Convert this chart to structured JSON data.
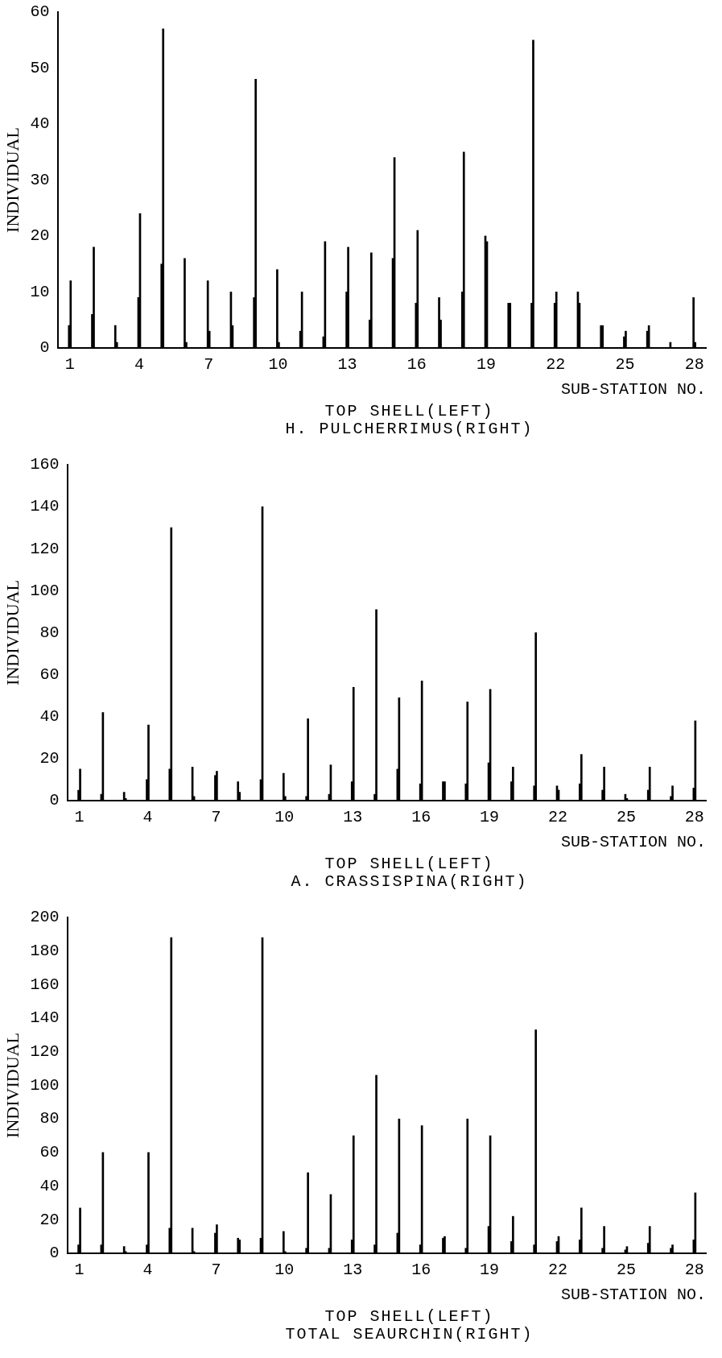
{
  "chart_data": [
    {
      "type": "bar",
      "title": "TOP SHELL(LEFT)",
      "subtitle": "H. PULCHERRIMUS(RIGHT)",
      "xlabel": "SUB-STATION NO.",
      "ylabel": "INDIVIDUAL",
      "categories": [
        "1",
        null,
        null,
        "4",
        null,
        null,
        "7",
        null,
        null,
        "10",
        null,
        null,
        "13",
        null,
        null,
        "16",
        null,
        null,
        "19",
        null,
        null,
        "22",
        null,
        null,
        "25",
        null,
        null,
        "28"
      ],
      "series": [
        {
          "color": "#000000",
          "values": [
            4,
            6,
            4,
            9,
            15,
            16,
            12,
            10,
            9,
            14,
            3,
            2,
            10,
            5,
            16,
            8,
            9,
            10,
            20,
            8,
            8,
            8,
            10,
            4,
            2,
            3,
            1,
            9
          ]
        },
        {
          "color": "#000000",
          "values": [
            12,
            18,
            1,
            24,
            57,
            1,
            3,
            4,
            48,
            1,
            10,
            19,
            18,
            17,
            34,
            21,
            5,
            35,
            19,
            8,
            55,
            10,
            8,
            4,
            3,
            4,
            0,
            1
          ]
        }
      ],
      "ylim": [
        0,
        60
      ],
      "yticks": [
        0,
        10,
        20,
        30,
        40,
        50,
        60
      ],
      "grid": false
    },
    {
      "type": "bar",
      "title": "TOP SHELL(LEFT)",
      "subtitle": "A. CRASSISPINA(RIGHT)",
      "xlabel": "SUB-STATION NO.",
      "ylabel": "INDIVIDUAL",
      "categories": [
        "1",
        null,
        null,
        "4",
        null,
        null,
        "7",
        null,
        null,
        "10",
        null,
        null,
        "13",
        null,
        null,
        "16",
        null,
        null,
        "19",
        null,
        null,
        "22",
        null,
        null,
        "25",
        null,
        null,
        "28"
      ],
      "series": [
        {
          "color": "#000000",
          "values": [
            5,
            3,
            4,
            10,
            15,
            16,
            12,
            9,
            10,
            13,
            2,
            3,
            9,
            3,
            15,
            8,
            9,
            8,
            18,
            9,
            7,
            7,
            8,
            5,
            3,
            5,
            2,
            6
          ]
        },
        {
          "color": "#000000",
          "values": [
            15,
            42,
            1,
            36,
            130,
            2,
            14,
            4,
            140,
            2,
            39,
            17,
            54,
            91,
            49,
            57,
            9,
            47,
            53,
            16,
            80,
            5,
            22,
            16,
            1,
            16,
            7,
            38
          ]
        }
      ],
      "ylim": [
        0,
        160
      ],
      "yticks": [
        0,
        20,
        40,
        60,
        80,
        100,
        120,
        140,
        160
      ],
      "grid": false
    },
    {
      "type": "bar",
      "title": "TOP SHELL(LEFT)",
      "subtitle": "TOTAL SEAURCHIN(RIGHT)",
      "xlabel": "SUB-STATION NO.",
      "ylabel": "INDIVIDUAL",
      "categories": [
        "1",
        null,
        null,
        "4",
        null,
        null,
        "7",
        null,
        null,
        "10",
        null,
        null,
        "13",
        null,
        null,
        "16",
        null,
        null,
        "19",
        null,
        null,
        "22",
        null,
        null,
        "25",
        null,
        null,
        "28"
      ],
      "series": [
        {
          "color": "#000000",
          "values": [
            5,
            5,
            4,
            5,
            15,
            15,
            12,
            9,
            9,
            13,
            3,
            3,
            8,
            5,
            12,
            5,
            9,
            3,
            16,
            7,
            5,
            7,
            8,
            3,
            2,
            6,
            3,
            8
          ]
        },
        {
          "color": "#000000",
          "values": [
            27,
            60,
            1,
            60,
            188,
            1,
            17,
            8,
            188,
            1,
            48,
            35,
            70,
            106,
            80,
            76,
            10,
            80,
            70,
            22,
            133,
            10,
            27,
            16,
            4,
            16,
            5,
            36
          ]
        }
      ],
      "ylim": [
        0,
        200
      ],
      "yticks": [
        0,
        20,
        40,
        60,
        80,
        100,
        120,
        140,
        160,
        180,
        200
      ],
      "grid": false
    }
  ]
}
